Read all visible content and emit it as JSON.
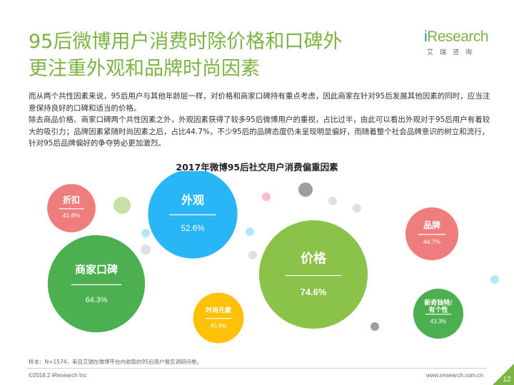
{
  "title_line1": "95后微博用户消费时除价格和口碑外",
  "title_line2": "更注重外观和品牌时尚因素",
  "logo": {
    "brand_prefix": "i",
    "brand_rest": "Research",
    "sub": "艾瑞咨询"
  },
  "paragraphs": [
    "而从两个共性因素来说，95后用户与其他年龄层一样，对价格和商家口碑持有重点考虑，因此商家在针对95后发展其他因素的同时，应当注意保持良好的口碑和适当的价格。",
    "除去商品价格、商家口碑两个共性因素之外，外观因素获得了较多95后微博用户的重视，占比过半，由此可以看出外观对于95后用户有着较大的吸引力；品牌因素紧随时尚因素之后，占比44.7%，不少95后的品牌态度仍未呈现明显偏好，而随着整个社会品牌意识的树立和流行，针对95后品牌偏好的争夺势必更加激烈。"
  ],
  "chart_data": {
    "type": "bubble",
    "title": "2017年微博95后社交用户消费偏重因素",
    "unit": "%",
    "items": [
      {
        "name": "折扣",
        "value": 41.8,
        "label": "41.8%",
        "color": "#f07d7d"
      },
      {
        "name": "外观",
        "value": 52.6,
        "label": "52.6%",
        "color": "#29b6f6"
      },
      {
        "name": "品牌",
        "value": 44.7,
        "label": "44.7%",
        "color": "#f07d7d"
      },
      {
        "name": "商家口碑",
        "value": 64.3,
        "label": "64.3%",
        "color": "#4caf50"
      },
      {
        "name": "价格",
        "value": 74.6,
        "label": "74.6%",
        "color": "#8bc34a"
      },
      {
        "name": "时尚元素",
        "value": 45.4,
        "label": "45.4%",
        "color": "#ffc107"
      },
      {
        "name": "新奇独特/有个性",
        "value": 43.3,
        "label": "43.3%",
        "color": "#4caf50"
      }
    ],
    "decor_colors": {
      "grey": "#9e9e9e",
      "light_grey": "#e0e0e0",
      "light_green": "#c5e1a5",
      "light_blue": "#b3e5fc",
      "light_pink": "#f8bbd0"
    }
  },
  "footnote": "样本：N=1574，来自艾瑞在微博平台内收取的95后用户报告调研问卷。",
  "copyright": "©2018.2 iResearch Inc",
  "website": "www.iresearch.com.cn",
  "page_number": "12"
}
